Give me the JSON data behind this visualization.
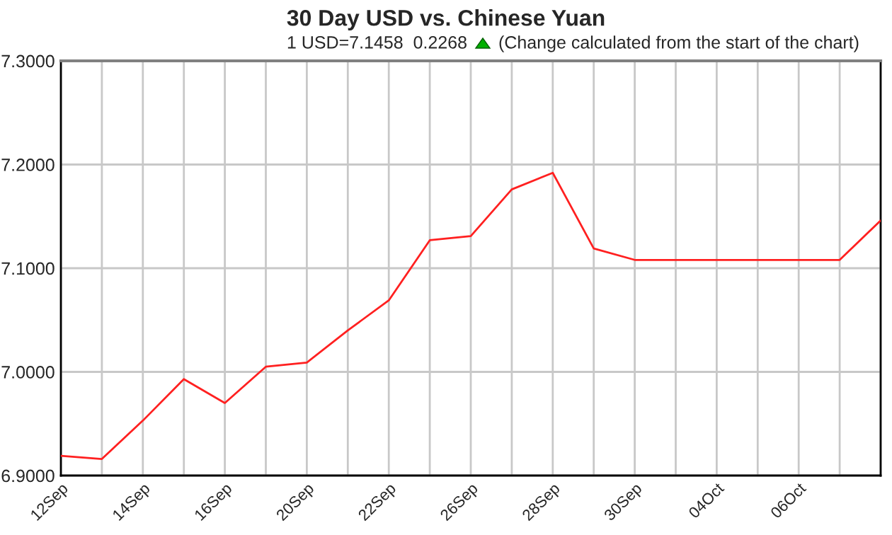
{
  "chart_data": {
    "type": "line",
    "title": "30 Day USD vs. Chinese Yuan",
    "subtitle": "1 USD=7.1458  0.2268",
    "annotations": [
      "(Change calculated from the start of the chart)"
    ],
    "categories": [
      "12Sep",
      null,
      "14Sep",
      null,
      "16Sep",
      null,
      "20Sep",
      null,
      "22Sep",
      null,
      "26Sep",
      null,
      "28Sep",
      null,
      "30Sep",
      null,
      "04Oct",
      null,
      "06Oct",
      null,
      null
    ],
    "series": [
      {
        "color": "#ff2020",
        "values": [
          6.919,
          6.916,
          6.953,
          6.993,
          6.97,
          7.005,
          7.009,
          7.04,
          7.069,
          7.127,
          7.131,
          7.176,
          7.192,
          7.119,
          7.108,
          7.108,
          7.108,
          7.108,
          7.108,
          7.108,
          7.146
        ]
      }
    ],
    "ylim": [
      6.9,
      7.3
    ],
    "yticks": [
      {
        "value": 6.9,
        "label": "6.9000"
      },
      {
        "value": 7.0,
        "label": "7.0000"
      },
      {
        "value": 7.1,
        "label": "7.1000"
      },
      {
        "value": 7.2,
        "label": "7.2000"
      },
      {
        "value": 7.3,
        "label": "7.3000"
      }
    ],
    "grid": true,
    "legend": false,
    "marker": "none",
    "line_style": "solid"
  }
}
